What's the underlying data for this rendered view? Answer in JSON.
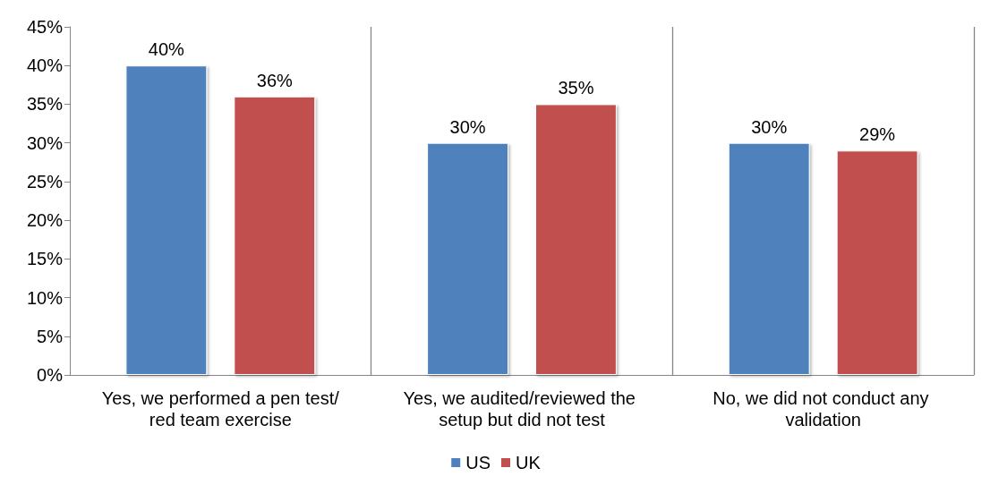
{
  "chart_data": {
    "type": "bar",
    "categories": [
      "Yes, we performed a pen test/red team exercise",
      "Yes, we audited/reviewed the setup but did not test",
      "No, we did not conduct any validation"
    ],
    "series": [
      {
        "name": "US",
        "color": "#4f81bd",
        "values": [
          40,
          30,
          30
        ],
        "value_labels": [
          "40%",
          "30%",
          "30%"
        ]
      },
      {
        "name": "UK",
        "color": "#c0504d",
        "values": [
          36,
          35,
          29
        ],
        "value_labels": [
          "36%",
          "35%",
          "29%"
        ]
      }
    ],
    "ylim": [
      0,
      45
    ],
    "yticks": [
      {
        "value": 0,
        "label": "0%"
      },
      {
        "value": 5,
        "label": "5%"
      },
      {
        "value": 10,
        "label": "10%"
      },
      {
        "value": 15,
        "label": "15%"
      },
      {
        "value": 20,
        "label": "20%"
      },
      {
        "value": 25,
        "label": "25%"
      },
      {
        "value": 30,
        "label": "30%"
      },
      {
        "value": 35,
        "label": "35%"
      },
      {
        "value": 40,
        "label": "40%"
      },
      {
        "value": 45,
        "label": "45%"
      }
    ],
    "grid": "x",
    "legend": "bottom"
  }
}
